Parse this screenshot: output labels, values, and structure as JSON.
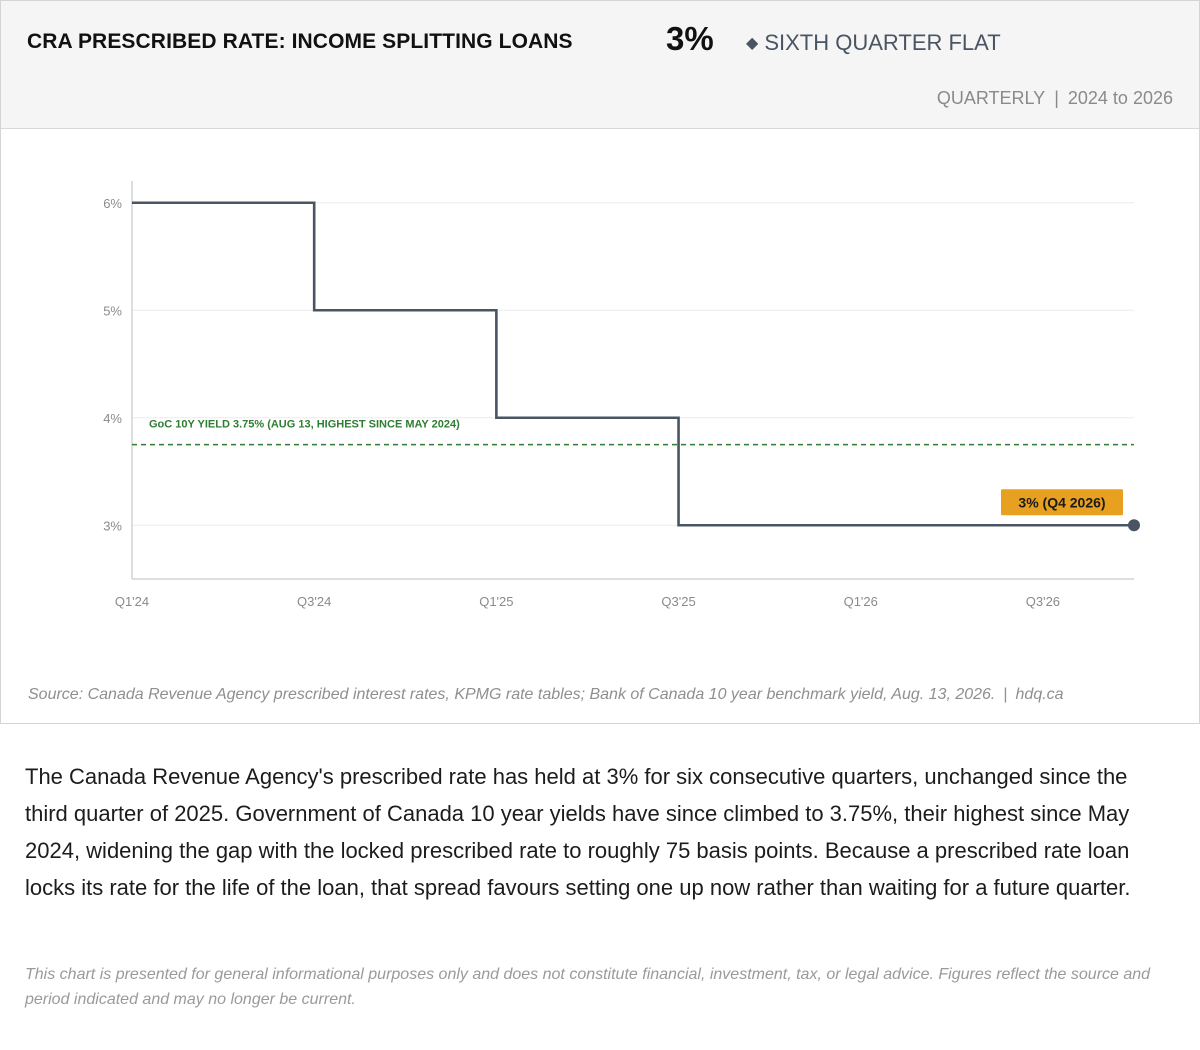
{
  "header": {
    "title": "CRA PRESCRIBED RATE: INCOME SPLITTING LOANS",
    "current_value": "3%",
    "status_icon": "diamond-icon",
    "status": "SIXTH QUARTER FLAT",
    "frequency": "QUARTERLY",
    "separator": "|",
    "period": "2024 to 2026"
  },
  "chart_data": {
    "type": "line",
    "step": true,
    "x": [
      "Q1'24",
      "Q2'24",
      "Q3'24",
      "Q4'24",
      "Q1'25",
      "Q2'25",
      "Q3'25",
      "Q4'25",
      "Q1'26",
      "Q2'26",
      "Q3'26",
      "Q4'26"
    ],
    "series": [
      {
        "values": [
          6,
          6,
          5,
          5,
          4,
          4,
          3,
          3,
          3,
          3,
          3,
          3
        ],
        "color": "#4a5463"
      }
    ],
    "x_ticks": [
      "Q1'24",
      "Q3'24",
      "Q1'25",
      "Q3'25",
      "Q1'26",
      "Q3'26"
    ],
    "y_ticks": [
      3,
      4,
      5,
      6
    ],
    "y_tick_labels": [
      "3%",
      "4%",
      "5%",
      "6%"
    ],
    "ylim": [
      2.5,
      6.5
    ],
    "grid": "horizontal",
    "reference_line": {
      "value": 3.75,
      "label": "GoC 10Y YIELD 3.75% (AUG 13, HIGHEST SINCE MAY 2024)",
      "color": "#2e7d32"
    },
    "end_label": {
      "text": "3% (Q4 2026)",
      "color": "#e8a020"
    }
  },
  "source": {
    "text": "Source: Canada Revenue Agency prescribed interest rates, KPMG rate tables; Bank of Canada 10 year benchmark yield, Aug. 13, 2026.",
    "separator": "|",
    "site": "hdq.ca"
  },
  "body": {
    "paragraph": "The Canada Revenue Agency's prescribed rate has held at 3% for six consecutive quarters, unchanged since the third quarter of 2025. Government of Canada 10 year yields have since climbed to 3.75%, their highest since May 2024, widening the gap with the locked prescribed rate to roughly 75 basis points. Because a prescribed rate loan locks its rate for the life of the loan, that spread favours setting one up now rather than waiting for a future quarter.",
    "disclaimer": "This chart is presented for general informational purposes only and does not constitute financial, investment, tax, or legal advice. Figures reflect the source and period indicated and may no longer be current."
  }
}
